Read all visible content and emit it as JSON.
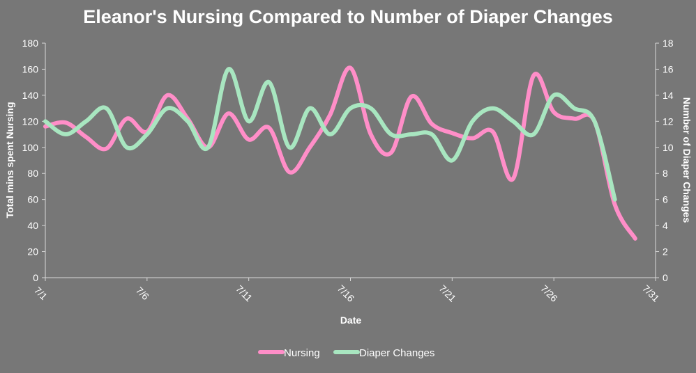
{
  "chart_data": {
    "type": "line",
    "title": "Eleanor's Nursing Compared to Number of Diaper Changes",
    "xlabel": "Date",
    "ylabel": "Total mins spent Nursing",
    "y2label": "Number of Diaper Changes",
    "x_ticks": [
      "7/1",
      "7/6",
      "7/11",
      "7/16",
      "7/21",
      "7/26",
      "7/31"
    ],
    "y_ticks": [
      "0",
      "20",
      "40",
      "60",
      "80",
      "100",
      "120",
      "140",
      "160",
      "180"
    ],
    "y2_ticks": [
      "0",
      "2",
      "4",
      "6",
      "8",
      "10",
      "12",
      "14",
      "16",
      "18"
    ],
    "ylim": [
      0,
      180
    ],
    "y2lim": [
      0,
      18
    ],
    "xlim": [
      "7/1",
      "7/31"
    ],
    "grid": false,
    "legend_position": "bottom",
    "series": [
      {
        "name": "Nursing",
        "axis": "left",
        "color": "#ff8ec8",
        "x": [
          "7/1",
          "7/2",
          "7/3",
          "7/4",
          "7/5",
          "7/6",
          "7/7",
          "7/8",
          "7/9",
          "7/10",
          "7/11",
          "7/12",
          "7/13",
          "7/14",
          "7/15",
          "7/16",
          "7/17",
          "7/18",
          "7/19",
          "7/20",
          "7/21",
          "7/22",
          "7/23",
          "7/24",
          "7/25",
          "7/26",
          "7/27",
          "7/28",
          "7/29",
          "7/30"
        ],
        "values": [
          116,
          119,
          108,
          99,
          122,
          112,
          140,
          122,
          100,
          126,
          106,
          115,
          81,
          100,
          125,
          161,
          110,
          96,
          139,
          118,
          111,
          107,
          112,
          76,
          155,
          127,
          122,
          120,
          56,
          30
        ]
      },
      {
        "name": "Diaper Changes",
        "axis": "right",
        "color": "#a8e6c0",
        "x": [
          "7/1",
          "7/2",
          "7/3",
          "7/4",
          "7/5",
          "7/6",
          "7/7",
          "7/8",
          "7/9",
          "7/10",
          "7/11",
          "7/12",
          "7/13",
          "7/14",
          "7/15",
          "7/16",
          "7/17",
          "7/18",
          "7/19",
          "7/20",
          "7/21",
          "7/22",
          "7/23",
          "7/24",
          "7/25",
          "7/26",
          "7/27",
          "7/28",
          "7/29"
        ],
        "values": [
          12,
          11,
          12,
          13,
          10,
          11,
          13,
          12,
          10,
          16,
          12,
          15,
          10,
          13,
          11,
          13,
          13,
          11,
          11,
          11,
          9,
          12,
          13,
          12,
          11,
          14,
          13,
          12,
          6
        ]
      }
    ]
  }
}
